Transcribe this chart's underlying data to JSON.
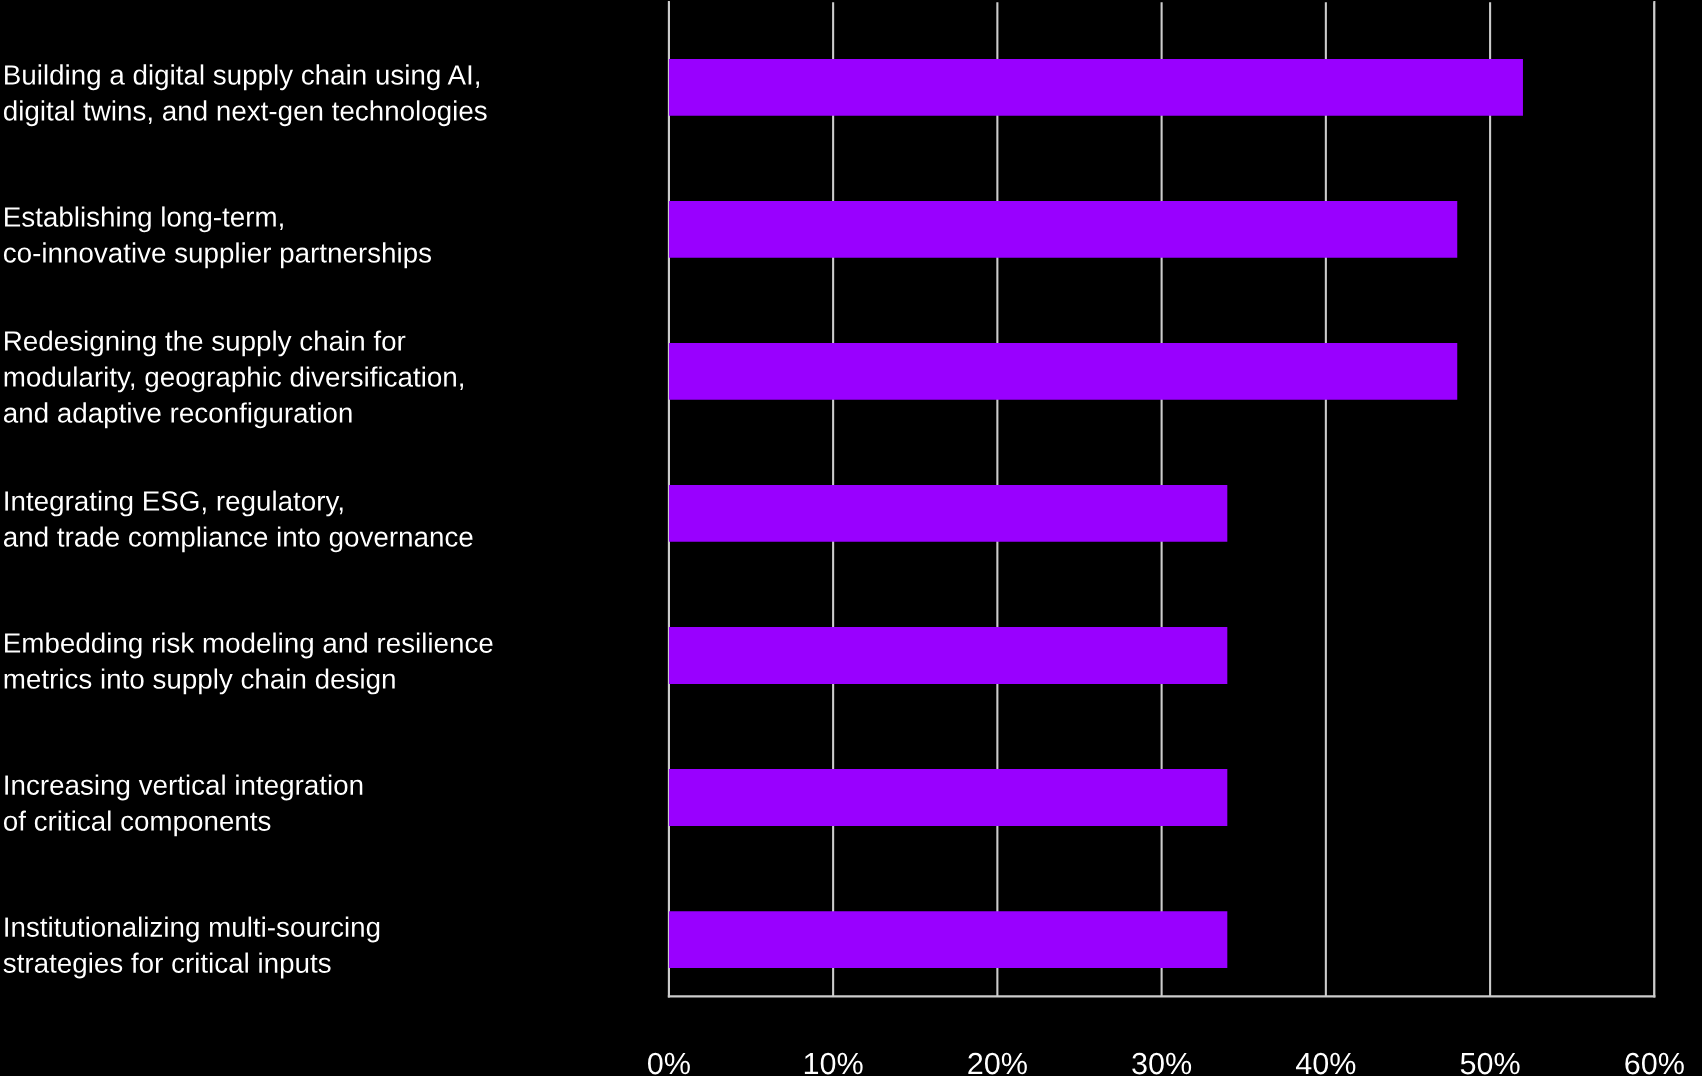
{
  "chart_data": {
    "type": "bar",
    "orientation": "horizontal",
    "categories": [
      "Building a digital supply chain using AI,\ndigital twins, and next-gen technologies",
      "Establishing long-term,\nco-innovative supplier partnerships",
      "Redesigning the supply chain for\nmodularity, geographic diversification,\nand adaptive reconfiguration",
      "Integrating ESG, regulatory,\nand trade compliance into governance",
      "Embedding risk modeling and resilience\nmetrics into supply chain design",
      "Increasing vertical integration\nof critical components",
      "Institutionalizing multi-sourcing\nstrategies for critical inputs"
    ],
    "values": [
      52,
      48,
      48,
      34,
      34,
      34,
      34
    ],
    "color": "#9900ff",
    "xlim": [
      0,
      60
    ],
    "xticks": [
      {
        "value": 0,
        "label": "0%"
      },
      {
        "value": 10,
        "label": "10%"
      },
      {
        "value": 20,
        "label": "20%"
      },
      {
        "value": 30,
        "label": "30%"
      },
      {
        "value": 40,
        "label": "40%"
      },
      {
        "value": 50,
        "label": "50%"
      },
      {
        "value": 60,
        "label": "60%"
      }
    ],
    "grid": "x",
    "legend": false
  }
}
